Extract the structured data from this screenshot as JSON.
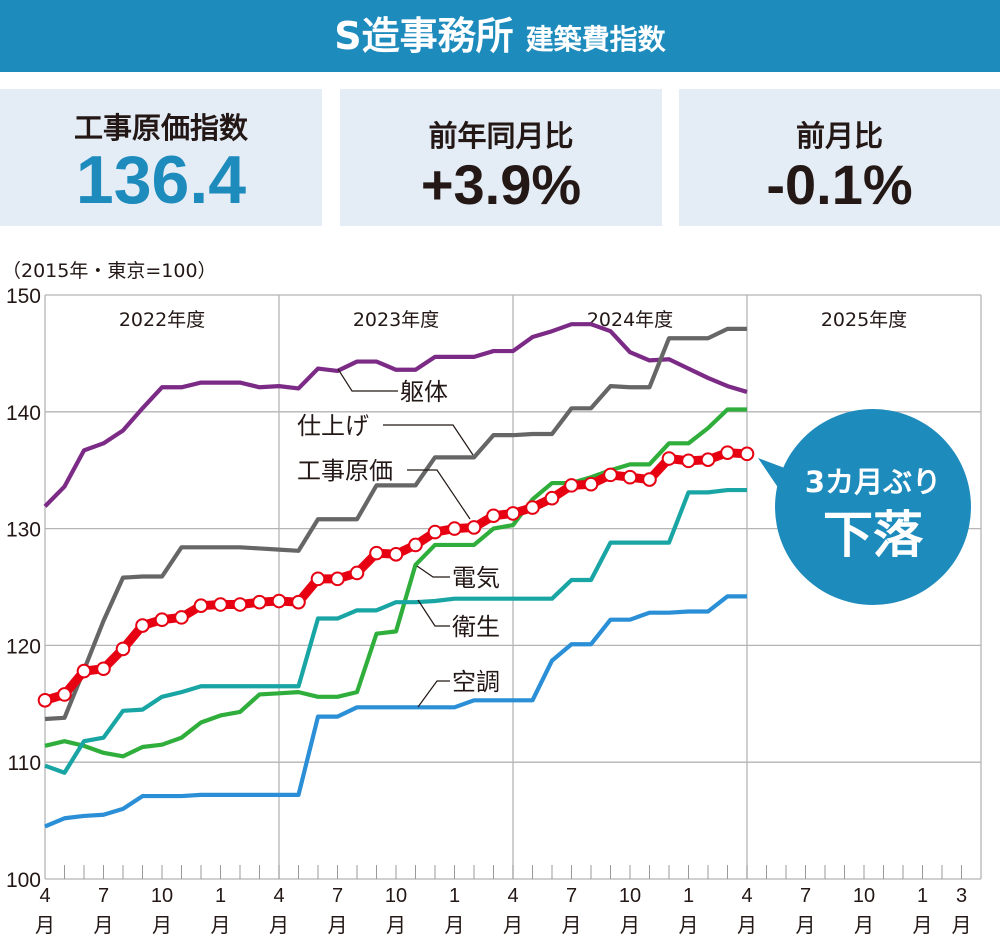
{
  "header": {
    "title": "S造事務所",
    "subtitle": "建築費指数"
  },
  "kpis": [
    {
      "label": "工事原価指数",
      "value": "136.4"
    },
    {
      "label": "前年同月比",
      "value": "+3.9%"
    },
    {
      "label": "前月比",
      "value": "-0.1%"
    }
  ],
  "callout": {
    "line1": "3カ月ぶり",
    "line2": "下落"
  },
  "colors": {
    "accent": "#1e8bbd",
    "kpi_bg": "#e4ecf5"
  },
  "chart_data": {
    "type": "line",
    "unit_note": "（2015年・東京=100）",
    "ylim": [
      100,
      150
    ],
    "yticks": [
      "100",
      "110",
      "120",
      "130",
      "140",
      "150"
    ],
    "grid": true,
    "fiscal_years": [
      "2022年度",
      "2023年度",
      "2024年度",
      "2025年度"
    ],
    "x_range": [
      "2022年4月",
      "2026年3月"
    ],
    "x_first": "2022年4月",
    "x_tick_labels": [
      {
        "num": "4",
        "unit": "月"
      },
      {
        "num": "7",
        "unit": "月"
      },
      {
        "num": "10",
        "unit": "月"
      },
      {
        "num": "1",
        "unit": "月"
      },
      {
        "num": "4",
        "unit": "月"
      },
      {
        "num": "7",
        "unit": "月"
      },
      {
        "num": "10",
        "unit": "月"
      },
      {
        "num": "1",
        "unit": "月"
      },
      {
        "num": "4",
        "unit": "月"
      },
      {
        "num": "7",
        "unit": "月"
      },
      {
        "num": "10",
        "unit": "月"
      },
      {
        "num": "1",
        "unit": "月"
      },
      {
        "num": "4",
        "unit": "月"
      },
      {
        "num": "7",
        "unit": "月"
      },
      {
        "num": "10",
        "unit": "月"
      },
      {
        "num": "1",
        "unit": "月"
      },
      {
        "num": "3",
        "unit": "月"
      }
    ],
    "series": [
      {
        "name": "躯体",
        "color": "#7b2a85",
        "values": [
          131.9,
          133.6,
          136.7,
          137.3,
          138.4,
          140.3,
          142.1,
          142.1,
          142.5,
          142.5,
          142.5,
          142.1,
          142.2,
          142.0,
          143.7,
          143.5,
          144.3,
          144.3,
          143.6,
          143.6,
          144.7,
          144.7,
          144.7,
          145.2,
          145.2,
          146.4,
          146.9,
          147.5,
          147.5,
          146.9,
          145.1,
          144.4,
          144.5,
          143.7,
          142.9,
          142.2,
          141.7
        ]
      },
      {
        "name": "仕上げ",
        "color": "#666666",
        "values": [
          113.7,
          113.8,
          117.9,
          122.1,
          125.8,
          125.9,
          125.9,
          128.4,
          128.4,
          128.4,
          128.4,
          128.3,
          128.2,
          128.1,
          130.8,
          130.8,
          130.8,
          133.7,
          133.7,
          133.7,
          136.1,
          136.1,
          136.1,
          138.0,
          138.0,
          138.1,
          138.1,
          140.3,
          140.3,
          142.2,
          142.1,
          142.1,
          146.3,
          146.3,
          146.3,
          147.1,
          147.1
        ]
      },
      {
        "name": "電気",
        "color": "#2fae3c",
        "values": [
          111.4,
          111.8,
          111.4,
          110.8,
          110.5,
          111.3,
          111.5,
          112.1,
          113.4,
          114.0,
          114.3,
          115.8,
          115.9,
          116.0,
          115.6,
          115.6,
          116.0,
          121.0,
          121.2,
          126.9,
          128.6,
          128.6,
          128.6,
          130.0,
          130.3,
          132.5,
          133.9,
          133.9,
          134.4,
          135.0,
          135.5,
          135.5,
          137.3,
          137.3,
          138.6,
          140.2,
          140.2
        ]
      },
      {
        "name": "衛生",
        "color": "#1aa5a5",
        "values": [
          109.7,
          109.1,
          111.8,
          112.1,
          114.4,
          114.5,
          115.6,
          116.0,
          116.5,
          116.5,
          116.5,
          116.5,
          116.5,
          116.5,
          122.3,
          122.3,
          123.0,
          123.0,
          123.7,
          123.7,
          123.8,
          124.0,
          124.0,
          124.0,
          124.0,
          124.0,
          124.0,
          125.6,
          125.6,
          128.8,
          128.8,
          128.8,
          128.8,
          133.1,
          133.1,
          133.3,
          133.3
        ]
      },
      {
        "name": "空調",
        "color": "#2a8fd6",
        "values": [
          104.5,
          105.2,
          105.4,
          105.5,
          106.0,
          107.1,
          107.1,
          107.1,
          107.2,
          107.2,
          107.2,
          107.2,
          107.2,
          107.2,
          113.9,
          113.9,
          114.7,
          114.7,
          114.7,
          114.7,
          114.7,
          114.7,
          115.3,
          115.3,
          115.3,
          115.3,
          118.7,
          120.1,
          120.1,
          122.2,
          122.2,
          122.8,
          122.8,
          122.9,
          122.9,
          124.2,
          124.2
        ]
      },
      {
        "name": "工事原価",
        "color": "#e60012",
        "markers": true,
        "values": [
          115.3,
          115.8,
          117.8,
          118.0,
          119.7,
          121.7,
          122.2,
          122.4,
          123.4,
          123.5,
          123.5,
          123.7,
          123.8,
          123.7,
          125.7,
          125.7,
          126.2,
          127.9,
          127.8,
          128.6,
          129.7,
          130.0,
          130.1,
          131.1,
          131.3,
          131.8,
          132.6,
          133.7,
          133.8,
          134.6,
          134.4,
          134.2,
          136.0,
          135.8,
          135.9,
          136.5,
          136.4
        ]
      }
    ]
  }
}
